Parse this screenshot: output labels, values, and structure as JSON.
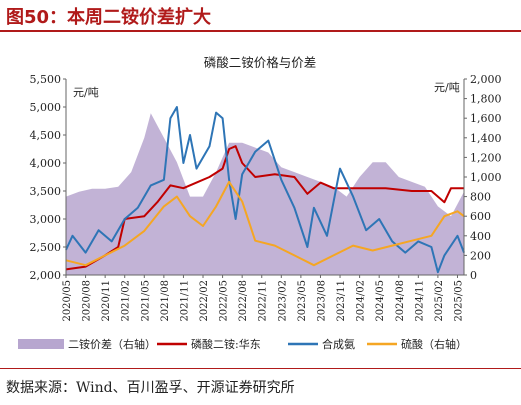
{
  "page": {
    "title": "图50：本周二铵价差扩大",
    "source": "数据来源：Wind、百川盈孚、开源证券研究所"
  },
  "chart_data": {
    "type": "line",
    "title": "磷酸二铵价格与价差",
    "left_unit": "元/吨",
    "right_unit": "元/吨",
    "ylim_left": [
      2000,
      5500
    ],
    "yticks_left": [
      "2,000",
      "2,500",
      "3,000",
      "3,500",
      "4,000",
      "4,500",
      "5,000",
      "5,500"
    ],
    "ylim_right": [
      0,
      2000
    ],
    "yticks_right": [
      "0",
      "200",
      "400",
      "600",
      "800",
      "1,000",
      "1,200",
      "1,400",
      "1,600",
      "1,800",
      "2,000"
    ],
    "x_range": [
      "2020-05",
      "2025-06"
    ],
    "xticks": [
      "2020/05",
      "2020/08",
      "2020/11",
      "2021/02",
      "2021/05",
      "2021/08",
      "2021/11",
      "2022/02",
      "2022/05",
      "2022/08",
      "2022/11",
      "2023/02",
      "2023/05",
      "2023/08",
      "2023/11",
      "2024/02",
      "2024/05",
      "2024/08",
      "2024/11",
      "2025/02",
      "2025/05"
    ],
    "legend": [
      "二铵价差（右轴）",
      "磷酸二铵:华东",
      "合成氨",
      "硫酸（右轴）"
    ],
    "colors": {
      "spread": "#b7a6cf",
      "dap": "#c00000",
      "ammonia": "#2e75b6",
      "sulfuric": "#f5a623"
    },
    "series": [
      {
        "name": "二铵价差（右轴）",
        "axis": "right",
        "kind": "area",
        "points": [
          [
            "2020-05",
            800
          ],
          [
            "2020-07",
            850
          ],
          [
            "2020-09",
            880
          ],
          [
            "2020-11",
            880
          ],
          [
            "2021-01",
            900
          ],
          [
            "2021-03",
            1050
          ],
          [
            "2021-05",
            1400
          ],
          [
            "2021-06",
            1650
          ],
          [
            "2021-08",
            1400
          ],
          [
            "2021-10",
            1150
          ],
          [
            "2021-12",
            800
          ],
          [
            "2022-02",
            800
          ],
          [
            "2022-04",
            1050
          ],
          [
            "2022-06",
            1350
          ],
          [
            "2022-08",
            1350
          ],
          [
            "2022-10",
            1300
          ],
          [
            "2022-12",
            1250
          ],
          [
            "2023-02",
            1100
          ],
          [
            "2023-04",
            1050
          ],
          [
            "2023-06",
            1000
          ],
          [
            "2023-08",
            950
          ],
          [
            "2023-10",
            900
          ],
          [
            "2023-12",
            800
          ],
          [
            "2024-02",
            1000
          ],
          [
            "2024-04",
            1150
          ],
          [
            "2024-06",
            1150
          ],
          [
            "2024-08",
            1000
          ],
          [
            "2024-10",
            950
          ],
          [
            "2024-12",
            900
          ],
          [
            "2025-02",
            700
          ],
          [
            "2025-04",
            600
          ],
          [
            "2025-06",
            850
          ]
        ]
      },
      {
        "name": "磷酸二铵:华东",
        "axis": "left",
        "points": [
          [
            "2020-05",
            2100
          ],
          [
            "2020-08",
            2150
          ],
          [
            "2020-11",
            2350
          ],
          [
            "2021-01",
            2500
          ],
          [
            "2021-02",
            3000
          ],
          [
            "2021-05",
            3050
          ],
          [
            "2021-07",
            3300
          ],
          [
            "2021-09",
            3600
          ],
          [
            "2021-11",
            3550
          ],
          [
            "2022-01",
            3650
          ],
          [
            "2022-03",
            3750
          ],
          [
            "2022-05",
            3900
          ],
          [
            "2022-06",
            4250
          ],
          [
            "2022-07",
            4300
          ],
          [
            "2022-08",
            4000
          ],
          [
            "2022-10",
            3750
          ],
          [
            "2023-01",
            3800
          ],
          [
            "2023-04",
            3750
          ],
          [
            "2023-06",
            3450
          ],
          [
            "2023-08",
            3650
          ],
          [
            "2023-10",
            3550
          ],
          [
            "2024-01",
            3550
          ],
          [
            "2024-06",
            3550
          ],
          [
            "2024-10",
            3500
          ],
          [
            "2025-01",
            3500
          ],
          [
            "2025-03",
            3300
          ],
          [
            "2025-04",
            3550
          ],
          [
            "2025-06",
            3550
          ]
        ]
      },
      {
        "name": "合成氨",
        "axis": "left",
        "points": [
          [
            "2020-05",
            2450
          ],
          [
            "2020-06",
            2700
          ],
          [
            "2020-08",
            2400
          ],
          [
            "2020-10",
            2800
          ],
          [
            "2020-12",
            2600
          ],
          [
            "2021-02",
            3000
          ],
          [
            "2021-04",
            3200
          ],
          [
            "2021-06",
            3600
          ],
          [
            "2021-08",
            3700
          ],
          [
            "2021-09",
            4800
          ],
          [
            "2021-10",
            5000
          ],
          [
            "2021-11",
            4000
          ],
          [
            "2021-12",
            4500
          ],
          [
            "2022-01",
            3900
          ],
          [
            "2022-03",
            4300
          ],
          [
            "2022-04",
            4900
          ],
          [
            "2022-05",
            4800
          ],
          [
            "2022-06",
            3700
          ],
          [
            "2022-07",
            3000
          ],
          [
            "2022-08",
            3800
          ],
          [
            "2022-10",
            4200
          ],
          [
            "2022-12",
            4400
          ],
          [
            "2023-02",
            3700
          ],
          [
            "2023-04",
            3200
          ],
          [
            "2023-06",
            2500
          ],
          [
            "2023-07",
            3200
          ],
          [
            "2023-09",
            2700
          ],
          [
            "2023-11",
            3900
          ],
          [
            "2024-01",
            3400
          ],
          [
            "2024-03",
            2800
          ],
          [
            "2024-05",
            3000
          ],
          [
            "2024-07",
            2600
          ],
          [
            "2024-09",
            2400
          ],
          [
            "2024-11",
            2600
          ],
          [
            "2025-01",
            2500
          ],
          [
            "2025-02",
            2050
          ],
          [
            "2025-03",
            2350
          ],
          [
            "2025-05",
            2700
          ],
          [
            "2025-06",
            2400
          ]
        ]
      },
      {
        "name": "硫酸（右轴）",
        "axis": "right",
        "points": [
          [
            "2020-05",
            150
          ],
          [
            "2020-08",
            100
          ],
          [
            "2020-11",
            200
          ],
          [
            "2021-02",
            300
          ],
          [
            "2021-05",
            450
          ],
          [
            "2021-08",
            700
          ],
          [
            "2021-10",
            800
          ],
          [
            "2021-12",
            600
          ],
          [
            "2022-02",
            500
          ],
          [
            "2022-04",
            700
          ],
          [
            "2022-06",
            950
          ],
          [
            "2022-08",
            750
          ],
          [
            "2022-10",
            350
          ],
          [
            "2023-01",
            300
          ],
          [
            "2023-04",
            200
          ],
          [
            "2023-07",
            100
          ],
          [
            "2023-10",
            200
          ],
          [
            "2024-01",
            300
          ],
          [
            "2024-04",
            250
          ],
          [
            "2024-07",
            300
          ],
          [
            "2024-10",
            350
          ],
          [
            "2025-01",
            400
          ],
          [
            "2025-03",
            600
          ],
          [
            "2025-05",
            650
          ],
          [
            "2025-06",
            600
          ]
        ]
      }
    ]
  }
}
